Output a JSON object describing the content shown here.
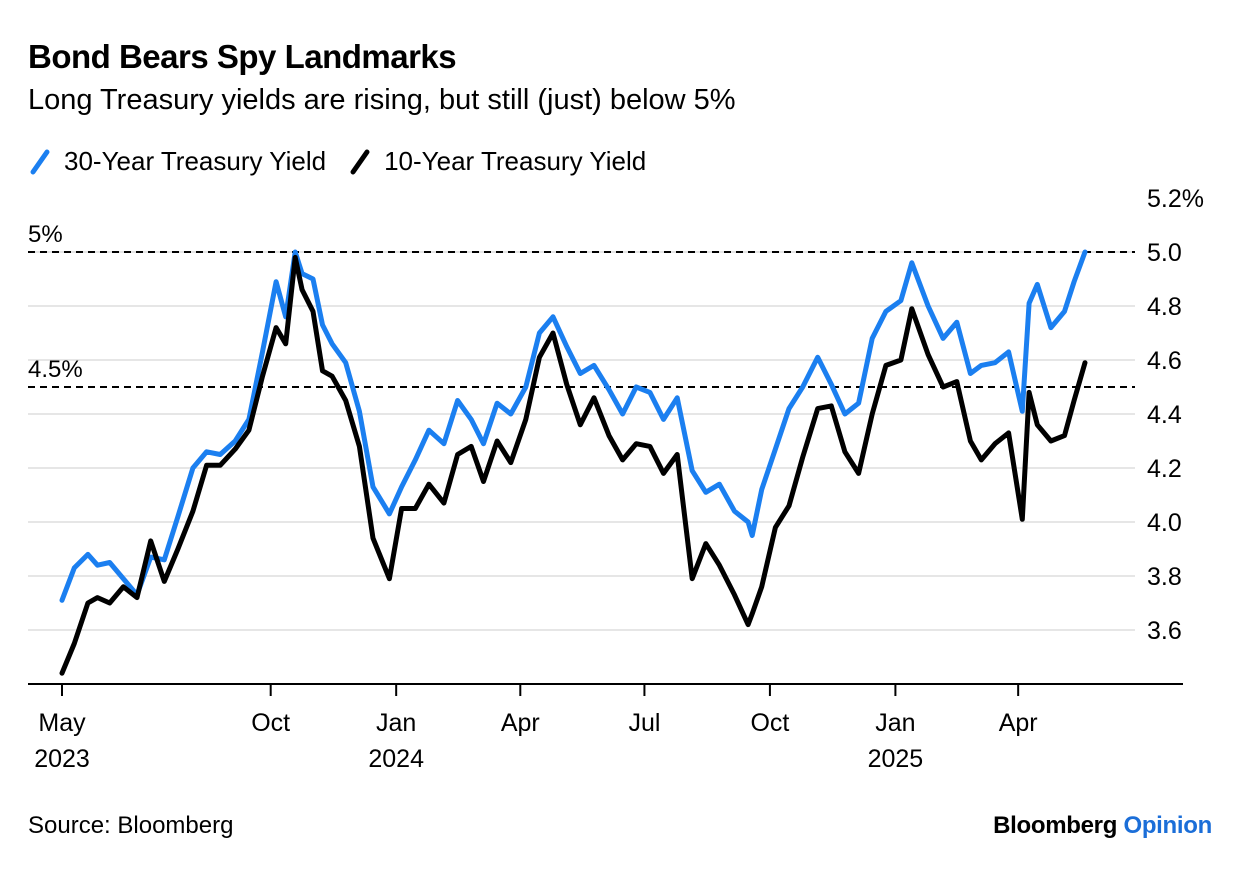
{
  "header": {
    "title": "Bond Bears Spy Landmarks",
    "subtitle": "Long Treasury yields are rising, but still (just) below 5%"
  },
  "footer": {
    "source": "Source: Bloomberg",
    "brand_bloomberg": "Bloomberg",
    "brand_opinion": "Opinion"
  },
  "colors": {
    "series_30y": "#1b7ff0",
    "series_10y": "#000000",
    "grid": "#e6e6e6"
  },
  "chart_data": {
    "type": "line",
    "title": "Bond Bears Spy Landmarks",
    "subtitle": "Long Treasury yields are rising, but still (just) below 5%",
    "ylim": [
      3.4,
      5.2
    ],
    "y_ticks": [
      3.6,
      3.8,
      4.0,
      4.2,
      4.4,
      4.6,
      4.8,
      5.0,
      5.2
    ],
    "y_tick_labels": [
      "3.6",
      "3.8",
      "4.0",
      "4.2",
      "4.4",
      "4.6",
      "4.8",
      "5.0",
      "5.2%"
    ],
    "y_axis_side": "right",
    "grid": true,
    "legend_position": "top-left",
    "x_range": [
      "2023-05-01",
      "2025-05-20"
    ],
    "x_ticks": [
      {
        "date": "2023-05-01",
        "label": "May",
        "year": "2023"
      },
      {
        "date": "2023-10-01",
        "label": "Oct",
        "year": ""
      },
      {
        "date": "2024-01-01",
        "label": "Jan",
        "year": "2024"
      },
      {
        "date": "2024-04-01",
        "label": "Apr",
        "year": ""
      },
      {
        "date": "2024-07-01",
        "label": "Jul",
        "year": ""
      },
      {
        "date": "2024-10-01",
        "label": "Oct",
        "year": ""
      },
      {
        "date": "2025-01-01",
        "label": "Jan",
        "year": "2025"
      },
      {
        "date": "2025-04-01",
        "label": "Apr",
        "year": ""
      }
    ],
    "reference_lines": [
      {
        "value": 5.0,
        "label": "5%"
      },
      {
        "value": 4.5,
        "label": "4.5%"
      }
    ],
    "series": [
      {
        "name": "30-Year Treasury Yield",
        "color": "#1b7ff0",
        "points": [
          [
            "2023-05-01",
            3.71
          ],
          [
            "2023-05-10",
            3.83
          ],
          [
            "2023-05-20",
            3.88
          ],
          [
            "2023-05-27",
            3.84
          ],
          [
            "2023-06-05",
            3.85
          ],
          [
            "2023-06-15",
            3.79
          ],
          [
            "2023-06-25",
            3.73
          ],
          [
            "2023-07-05",
            3.87
          ],
          [
            "2023-07-15",
            3.86
          ],
          [
            "2023-07-25",
            4.02
          ],
          [
            "2023-08-05",
            4.2
          ],
          [
            "2023-08-15",
            4.26
          ],
          [
            "2023-08-25",
            4.25
          ],
          [
            "2023-09-05",
            4.3
          ],
          [
            "2023-09-15",
            4.38
          ],
          [
            "2023-09-25",
            4.63
          ],
          [
            "2023-10-05",
            4.89
          ],
          [
            "2023-10-12",
            4.76
          ],
          [
            "2023-10-19",
            5.0
          ],
          [
            "2023-10-24",
            4.92
          ],
          [
            "2023-11-01",
            4.9
          ],
          [
            "2023-11-08",
            4.73
          ],
          [
            "2023-11-15",
            4.66
          ],
          [
            "2023-11-25",
            4.59
          ],
          [
            "2023-12-05",
            4.41
          ],
          [
            "2023-12-15",
            4.13
          ],
          [
            "2023-12-27",
            4.03
          ],
          [
            "2024-01-05",
            4.13
          ],
          [
            "2024-01-15",
            4.23
          ],
          [
            "2024-01-25",
            4.34
          ],
          [
            "2024-02-05",
            4.29
          ],
          [
            "2024-02-15",
            4.45
          ],
          [
            "2024-02-25",
            4.38
          ],
          [
            "2024-03-05",
            4.29
          ],
          [
            "2024-03-15",
            4.44
          ],
          [
            "2024-03-25",
            4.4
          ],
          [
            "2024-04-05",
            4.5
          ],
          [
            "2024-04-15",
            4.7
          ],
          [
            "2024-04-25",
            4.76
          ],
          [
            "2024-05-05",
            4.65
          ],
          [
            "2024-05-15",
            4.55
          ],
          [
            "2024-05-25",
            4.58
          ],
          [
            "2024-06-05",
            4.49
          ],
          [
            "2024-06-15",
            4.4
          ],
          [
            "2024-06-25",
            4.5
          ],
          [
            "2024-07-05",
            4.48
          ],
          [
            "2024-07-15",
            4.38
          ],
          [
            "2024-07-25",
            4.46
          ],
          [
            "2024-08-05",
            4.19
          ],
          [
            "2024-08-15",
            4.11
          ],
          [
            "2024-08-25",
            4.14
          ],
          [
            "2024-09-05",
            4.04
          ],
          [
            "2024-09-15",
            4.0
          ],
          [
            "2024-09-18",
            3.95
          ],
          [
            "2024-09-25",
            4.12
          ],
          [
            "2024-10-05",
            4.27
          ],
          [
            "2024-10-15",
            4.42
          ],
          [
            "2024-10-25",
            4.5
          ],
          [
            "2024-11-05",
            4.61
          ],
          [
            "2024-11-15",
            4.51
          ],
          [
            "2024-11-25",
            4.4
          ],
          [
            "2024-12-05",
            4.44
          ],
          [
            "2024-12-15",
            4.68
          ],
          [
            "2024-12-25",
            4.78
          ],
          [
            "2025-01-05",
            4.82
          ],
          [
            "2025-01-13",
            4.96
          ],
          [
            "2025-01-25",
            4.8
          ],
          [
            "2025-02-05",
            4.68
          ],
          [
            "2025-02-15",
            4.74
          ],
          [
            "2025-02-25",
            4.55
          ],
          [
            "2025-03-05",
            4.58
          ],
          [
            "2025-03-15",
            4.59
          ],
          [
            "2025-03-25",
            4.63
          ],
          [
            "2025-04-04",
            4.41
          ],
          [
            "2025-04-09",
            4.81
          ],
          [
            "2025-04-15",
            4.88
          ],
          [
            "2025-04-25",
            4.72
          ],
          [
            "2025-05-05",
            4.78
          ],
          [
            "2025-05-12",
            4.89
          ],
          [
            "2025-05-20",
            5.0
          ]
        ]
      },
      {
        "name": "10-Year Treasury Yield",
        "color": "#000000",
        "points": [
          [
            "2023-05-01",
            3.44
          ],
          [
            "2023-05-10",
            3.55
          ],
          [
            "2023-05-20",
            3.7
          ],
          [
            "2023-05-27",
            3.72
          ],
          [
            "2023-06-05",
            3.7
          ],
          [
            "2023-06-15",
            3.76
          ],
          [
            "2023-06-25",
            3.72
          ],
          [
            "2023-07-05",
            3.93
          ],
          [
            "2023-07-15",
            3.78
          ],
          [
            "2023-07-25",
            3.9
          ],
          [
            "2023-08-05",
            4.04
          ],
          [
            "2023-08-15",
            4.21
          ],
          [
            "2023-08-25",
            4.21
          ],
          [
            "2023-09-05",
            4.27
          ],
          [
            "2023-09-15",
            4.34
          ],
          [
            "2023-09-25",
            4.54
          ],
          [
            "2023-10-05",
            4.72
          ],
          [
            "2023-10-12",
            4.66
          ],
          [
            "2023-10-19",
            4.98
          ],
          [
            "2023-10-24",
            4.86
          ],
          [
            "2023-11-01",
            4.78
          ],
          [
            "2023-11-08",
            4.56
          ],
          [
            "2023-11-15",
            4.54
          ],
          [
            "2023-11-25",
            4.45
          ],
          [
            "2023-12-05",
            4.28
          ],
          [
            "2023-12-15",
            3.94
          ],
          [
            "2023-12-27",
            3.79
          ],
          [
            "2024-01-05",
            4.05
          ],
          [
            "2024-01-15",
            4.05
          ],
          [
            "2024-01-25",
            4.14
          ],
          [
            "2024-02-05",
            4.07
          ],
          [
            "2024-02-15",
            4.25
          ],
          [
            "2024-02-25",
            4.28
          ],
          [
            "2024-03-05",
            4.15
          ],
          [
            "2024-03-15",
            4.3
          ],
          [
            "2024-03-25",
            4.22
          ],
          [
            "2024-04-05",
            4.38
          ],
          [
            "2024-04-15",
            4.61
          ],
          [
            "2024-04-25",
            4.7
          ],
          [
            "2024-05-05",
            4.51
          ],
          [
            "2024-05-15",
            4.36
          ],
          [
            "2024-05-25",
            4.46
          ],
          [
            "2024-06-05",
            4.32
          ],
          [
            "2024-06-15",
            4.23
          ],
          [
            "2024-06-25",
            4.29
          ],
          [
            "2024-07-05",
            4.28
          ],
          [
            "2024-07-15",
            4.18
          ],
          [
            "2024-07-25",
            4.25
          ],
          [
            "2024-08-05",
            3.79
          ],
          [
            "2024-08-15",
            3.92
          ],
          [
            "2024-08-25",
            3.84
          ],
          [
            "2024-09-05",
            3.73
          ],
          [
            "2024-09-15",
            3.62
          ],
          [
            "2024-09-18",
            3.66
          ],
          [
            "2024-09-25",
            3.76
          ],
          [
            "2024-10-05",
            3.98
          ],
          [
            "2024-10-15",
            4.06
          ],
          [
            "2024-10-25",
            4.24
          ],
          [
            "2024-11-05",
            4.42
          ],
          [
            "2024-11-15",
            4.43
          ],
          [
            "2024-11-25",
            4.26
          ],
          [
            "2024-12-05",
            4.18
          ],
          [
            "2024-12-15",
            4.4
          ],
          [
            "2024-12-25",
            4.58
          ],
          [
            "2025-01-05",
            4.6
          ],
          [
            "2025-01-13",
            4.79
          ],
          [
            "2025-01-25",
            4.62
          ],
          [
            "2025-02-05",
            4.5
          ],
          [
            "2025-02-15",
            4.52
          ],
          [
            "2025-02-25",
            4.3
          ],
          [
            "2025-03-05",
            4.23
          ],
          [
            "2025-03-15",
            4.29
          ],
          [
            "2025-03-25",
            4.33
          ],
          [
            "2025-04-04",
            4.01
          ],
          [
            "2025-04-09",
            4.48
          ],
          [
            "2025-04-15",
            4.36
          ],
          [
            "2025-04-25",
            4.3
          ],
          [
            "2025-05-05",
            4.32
          ],
          [
            "2025-05-12",
            4.45
          ],
          [
            "2025-05-20",
            4.59
          ]
        ]
      }
    ]
  }
}
